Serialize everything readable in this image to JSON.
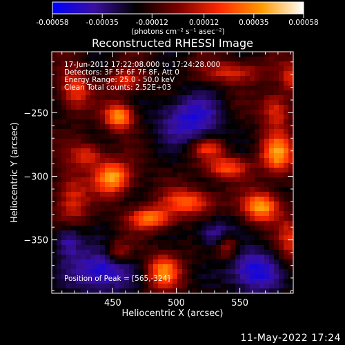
{
  "colors": {
    "background": "#000000",
    "foreground": "#ffffff"
  },
  "colorbar": {
    "tick_labels": [
      "-0.00058",
      "-0.00035",
      "-0.00012",
      "0.00012",
      "0.00035",
      "0.00058"
    ],
    "tick_values": [
      -0.00058,
      -0.00035,
      -0.00012,
      0.00012,
      0.00035,
      0.00058
    ],
    "range": [
      -0.00058,
      0.00058
    ],
    "unit_label": "(photons cm⁻² s⁻¹ asec⁻²)",
    "colormap": [
      "#0000ff",
      "#3a10a0",
      "#000000",
      "#7a0000",
      "#ff2a00",
      "#ff9a00",
      "#ffffff"
    ]
  },
  "chart_data": {
    "type": "heatmap",
    "title": "Reconstructed RHESSI Image",
    "xlabel": "Heliocentric X (arcsec)",
    "ylabel": "Heliocentric Y (arcsec)",
    "xlim": [
      402,
      592
    ],
    "ylim": [
      -392,
      -202
    ],
    "x_ticks": [
      450,
      500,
      550
    ],
    "y_ticks": [
      -250,
      -300,
      -350
    ],
    "annotations": [
      "17-Jun-2012 17:22:08.000 to 17:24:28.000",
      "Detectors: 3F 5F 6F 7F 8F, Att 0",
      "Energy Range: 25.0 - 50.0 keV",
      "Clean    Total counts: 2.52E+03"
    ],
    "peak_label": "Position of Peak = [565,-324]",
    "sources": [
      {
        "x": 455,
        "y": -253,
        "amp": 1.0,
        "sx": 8,
        "sy": 7
      },
      {
        "x": 450,
        "y": -301,
        "amp": 1.0,
        "sx": 10,
        "sy": 9
      },
      {
        "x": 567,
        "y": -324,
        "amp": 1.0,
        "sx": 10,
        "sy": 8
      },
      {
        "x": 580,
        "y": -282,
        "amp": 0.9,
        "sx": 9,
        "sy": 11
      },
      {
        "x": 480,
        "y": -333,
        "amp": 0.85,
        "sx": 12,
        "sy": 6
      },
      {
        "x": 510,
        "y": -320,
        "amp": 0.75,
        "sx": 14,
        "sy": 7
      },
      {
        "x": 490,
        "y": -375,
        "amp": 0.85,
        "sx": 9,
        "sy": 9
      },
      {
        "x": 540,
        "y": -293,
        "amp": 0.7,
        "sx": 12,
        "sy": 6
      },
      {
        "x": 525,
        "y": -278,
        "amp": 0.6,
        "sx": 9,
        "sy": 5
      },
      {
        "x": 418,
        "y": -318,
        "amp": 0.55,
        "sx": 9,
        "sy": 16
      },
      {
        "x": 430,
        "y": -283,
        "amp": 0.55,
        "sx": 9,
        "sy": 7
      },
      {
        "x": 420,
        "y": -232,
        "amp": 0.65,
        "sx": 8,
        "sy": 11
      },
      {
        "x": 460,
        "y": -225,
        "amp": 0.55,
        "sx": 9,
        "sy": 6
      },
      {
        "x": 545,
        "y": -218,
        "amp": 0.55,
        "sx": 16,
        "sy": 6
      },
      {
        "x": 578,
        "y": -248,
        "amp": 0.6,
        "sx": 8,
        "sy": 10
      },
      {
        "x": 590,
        "y": -222,
        "amp": 0.5,
        "sx": 6,
        "sy": 8
      },
      {
        "x": 590,
        "y": -350,
        "amp": 0.5,
        "sx": 7,
        "sy": 12
      },
      {
        "x": 540,
        "y": -355,
        "amp": 0.5,
        "sx": 6,
        "sy": 7
      },
      {
        "x": 455,
        "y": -360,
        "amp": 0.45,
        "sx": 7,
        "sy": 6
      },
      {
        "x": 510,
        "y": -255,
        "amp": -0.6,
        "sx": 18,
        "sy": 14
      },
      {
        "x": 440,
        "y": -375,
        "amp": -0.7,
        "sx": 16,
        "sy": 12
      },
      {
        "x": 560,
        "y": -375,
        "amp": -0.7,
        "sx": 14,
        "sy": 12
      },
      {
        "x": 415,
        "y": -350,
        "amp": -0.55,
        "sx": 8,
        "sy": 10
      },
      {
        "x": 530,
        "y": -345,
        "amp": -0.5,
        "sx": 10,
        "sy": 8
      }
    ]
  },
  "footer": {
    "date": "11-May-2022 17:24"
  }
}
